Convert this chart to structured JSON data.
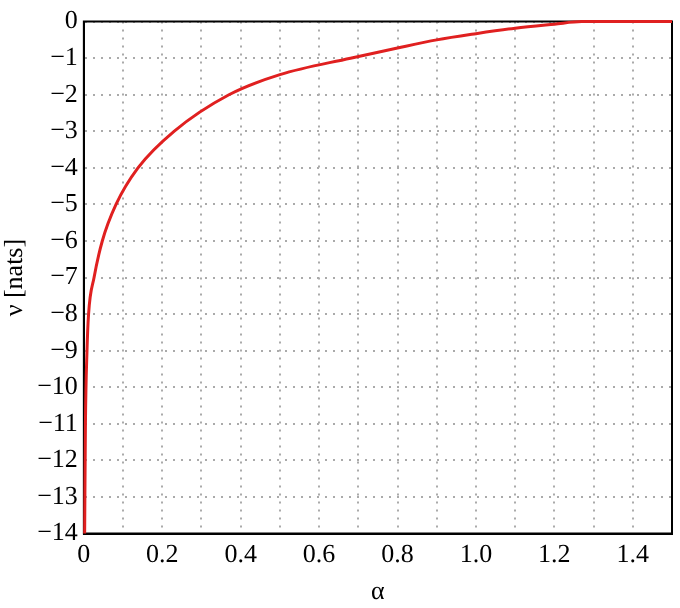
{
  "chart_data": {
    "type": "line",
    "xlabel": "α",
    "ylabel": "ν [nats]",
    "x": [
      0.002,
      0.004,
      0.008,
      0.012,
      0.026,
      0.047,
      0.082,
      0.138,
      0.23,
      0.37,
      0.5,
      0.68,
      0.8,
      0.9,
      1.0,
      1.1,
      1.2,
      1.27,
      1.5
    ],
    "series": [
      {
        "color": "#e02020",
        "values": [
          -14,
          -11,
          -9,
          -8,
          -7,
          -6,
          -5,
          -4,
          -3,
          -2,
          -1.45,
          -1,
          -0.72,
          -0.5,
          -0.33,
          -0.18,
          -0.07,
          0,
          0
        ]
      }
    ],
    "xlim": [
      0,
      1.5
    ],
    "xticks": [
      0,
      {
        "value": 0.1,
        "label": null
      },
      0.2,
      {
        "value": 0.3,
        "label": null
      },
      0.4,
      {
        "value": 0.5,
        "label": null
      },
      0.6,
      {
        "value": 0.7,
        "label": null
      },
      0.8,
      {
        "value": 0.9,
        "label": null
      },
      {
        "value": 1,
        "label": "1.0"
      },
      {
        "value": 1.1,
        "label": null
      },
      1.2,
      {
        "value": 1.3,
        "label": null
      },
      1.4
    ],
    "ylim": [
      -14,
      0
    ],
    "yticks": [
      -14,
      -13,
      -12,
      -11,
      -10,
      -9,
      -8,
      -7,
      -6,
      -5,
      -4,
      -3,
      -2,
      -1,
      0
    ],
    "grid": true,
    "legend": false,
    "marker": "none",
    "line_style": "solid"
  }
}
